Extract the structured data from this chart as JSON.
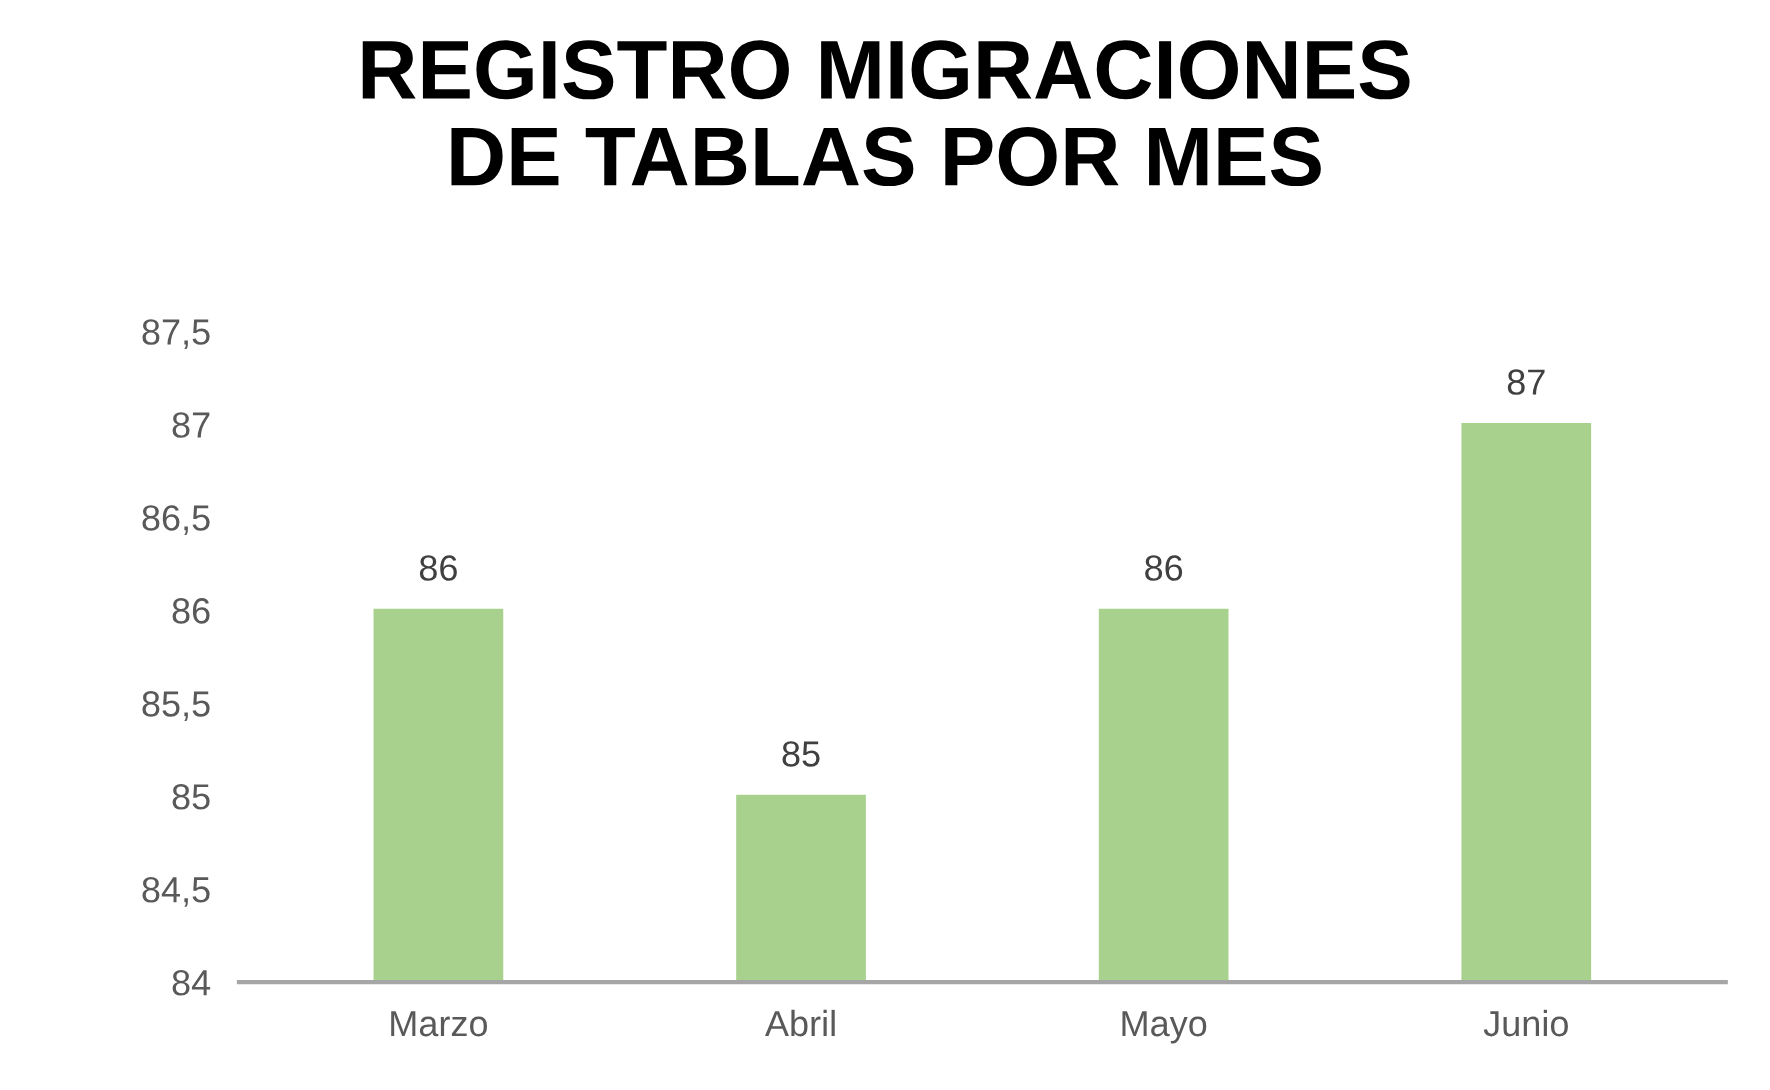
{
  "chart_data": {
    "type": "bar",
    "title": "REGISTRO MIGRACIONES\nDE TABLAS POR MES",
    "categories": [
      "Marzo",
      "Abril",
      "Mayo",
      "Junio"
    ],
    "values": [
      86,
      85,
      86,
      87
    ],
    "color": "#a9d18e",
    "ylim": [
      84,
      87.5
    ],
    "yticks": [
      84,
      {
        "value": 84.5,
        "label": "84,5"
      },
      85,
      {
        "value": 85.5,
        "label": "85,5"
      },
      86,
      {
        "value": 86.5,
        "label": "86,5"
      },
      87,
      {
        "value": 87.5,
        "label": "87,5"
      }
    ],
    "data_labels": true,
    "grid": false,
    "legend": false
  }
}
